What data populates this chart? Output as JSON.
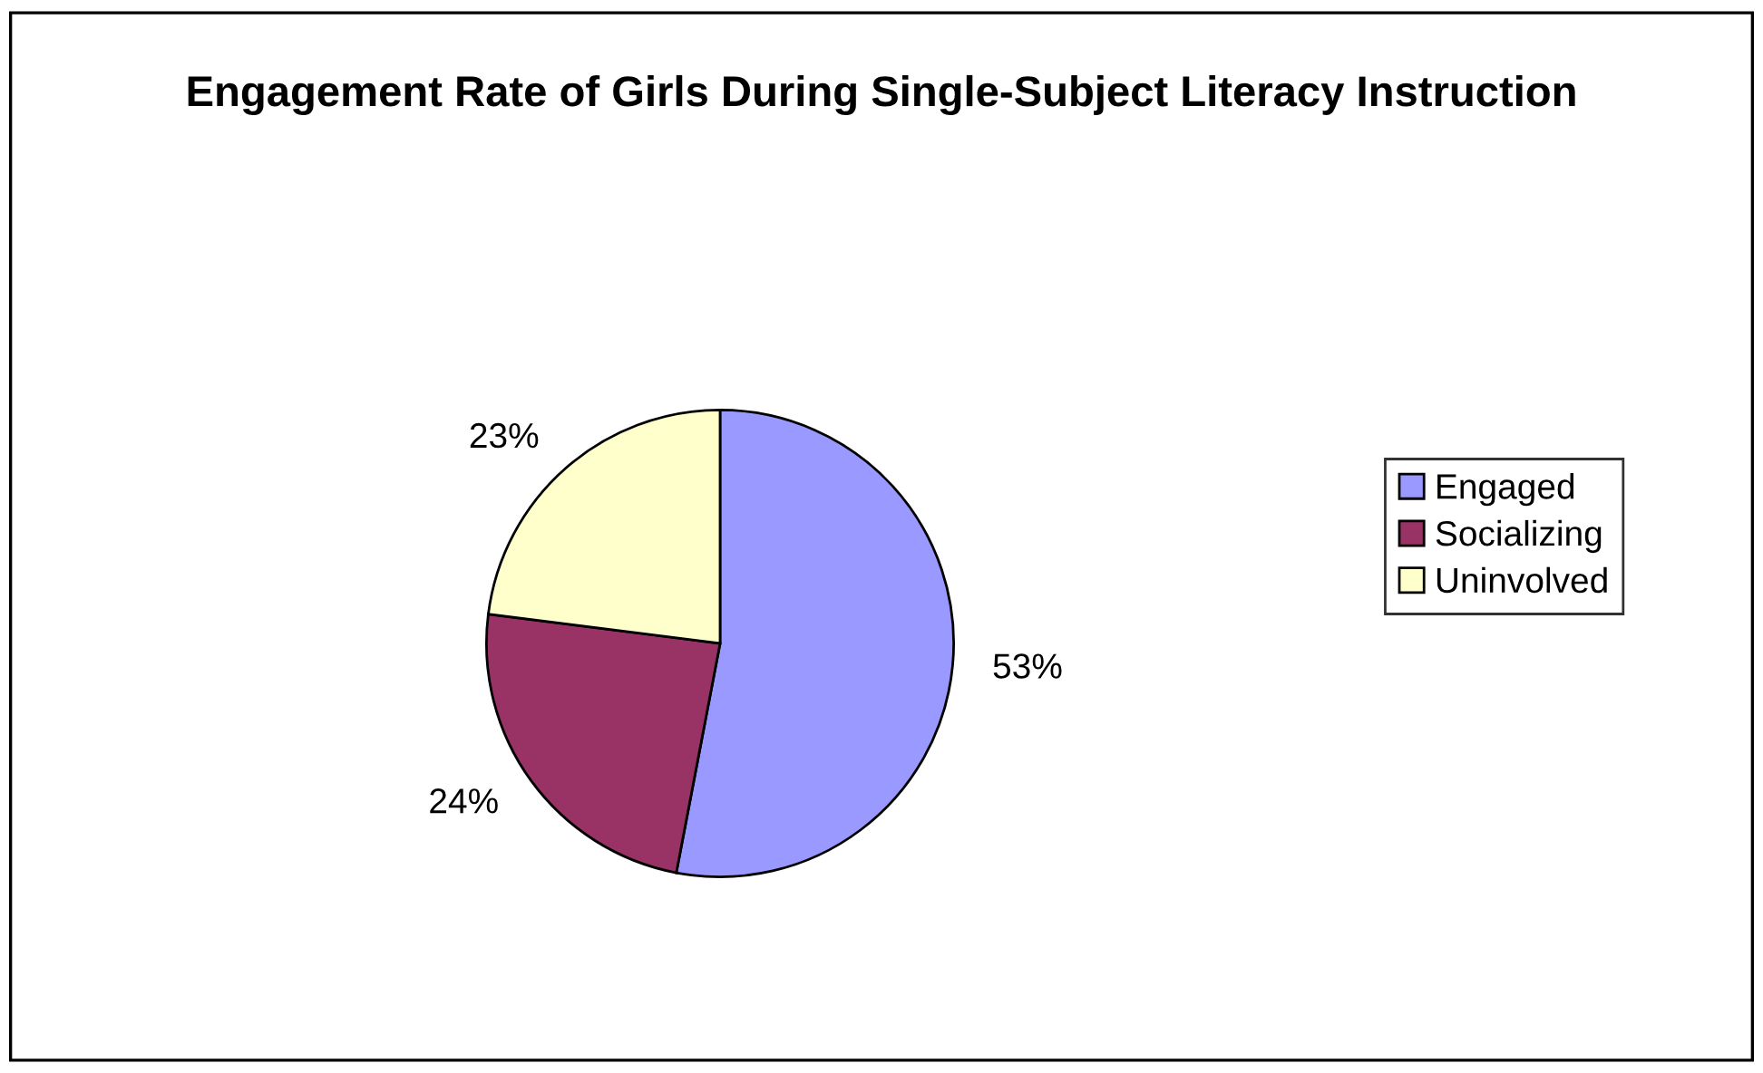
{
  "chart_data": {
    "type": "pie",
    "title": "Engagement Rate of Girls During Single-Subject Literacy Instruction",
    "categories": [
      "Engaged",
      "Socializing",
      "Uninvolved"
    ],
    "values": [
      53,
      24,
      23
    ],
    "value_labels": [
      "53%",
      "24%",
      "23%"
    ],
    "colors": [
      "#9999ff",
      "#993366",
      "#ffffcc"
    ],
    "legend": "right"
  }
}
